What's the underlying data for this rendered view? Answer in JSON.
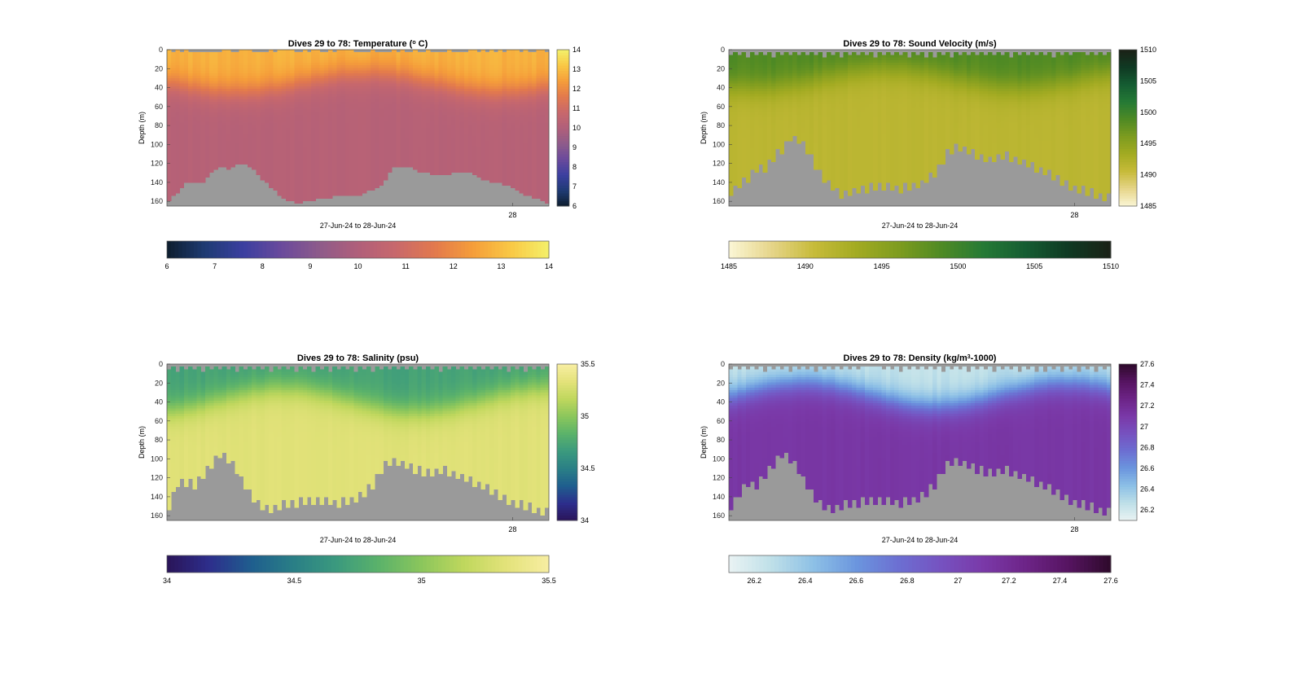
{
  "chart_data": [
    {
      "type": "heatmap",
      "title": "Dives 29 to 78: Temperature (°C)",
      "title_parts": [
        "Dives 29 to 78: Temperature (",
        "o",
        " C)"
      ],
      "xlabel": "27-Jun-24 to 28-Jun-24",
      "ylabel": "Depth (m)",
      "ylim": [
        0,
        165
      ],
      "y_ticks": [
        "0",
        "20",
        "40",
        "60",
        "80",
        "100",
        "120",
        "140",
        "160"
      ],
      "x_ticks": [
        "28"
      ],
      "clim": [
        6,
        14
      ],
      "colorbar_ticks": [
        "6",
        "7",
        "8",
        "9",
        "10",
        "11",
        "12",
        "13",
        "14"
      ],
      "horizontal_colorbar_ticks": [
        "6",
        "7",
        "8",
        "9",
        "10",
        "11",
        "12",
        "13",
        "14"
      ],
      "colormap": [
        "#0d1e2e",
        "#1f3b73",
        "#3b3fa0",
        "#6a4a9c",
        "#8e5b8a",
        "#b05f7a",
        "#c8686c",
        "#e2794d",
        "#f59d3a",
        "#f9c844",
        "#f4f06a"
      ],
      "profile": {
        "surface": 12.8,
        "deep": 10.2,
        "mixed_layer_m": [
          25,
          45
        ]
      },
      "seafloor_m": [
        160,
        150,
        140,
        140,
        141,
        130,
        124,
        126,
        122,
        122,
        128,
        138,
        146,
        154,
        160,
        162,
        160,
        158,
        157,
        155,
        155,
        155,
        154,
        150,
        148,
        140,
        125,
        122,
        124,
        128,
        130,
        132,
        132,
        130,
        128,
        130,
        134,
        138,
        140,
        142,
        146,
        150,
        155,
        158,
        162
      ],
      "gaps": "none"
    },
    {
      "type": "heatmap",
      "title": "Dives 29 to 78: Sound Velocity (m/s)",
      "xlabel": "27-Jun-24 to 28-Jun-24",
      "ylabel": "Depth (m)",
      "ylim": [
        0,
        165
      ],
      "y_ticks": [
        "0",
        "20",
        "40",
        "60",
        "80",
        "100",
        "120",
        "140",
        "160"
      ],
      "x_ticks": [
        "28"
      ],
      "clim": [
        1485,
        1510
      ],
      "colorbar_ticks": [
        "1485",
        "1490",
        "1495",
        "1500",
        "1505",
        "1510"
      ],
      "horizontal_colorbar_ticks": [
        "1485",
        "1490",
        "1495",
        "1500",
        "1505",
        "1510"
      ],
      "colormap": [
        "#fbf7d6",
        "#e6d58a",
        "#c7bb3a",
        "#a3ab22",
        "#7e9c1f",
        "#4f8a24",
        "#257a35",
        "#155c32",
        "#0f3a23",
        "#1b2116"
      ],
      "profile": {
        "surface": 1499,
        "deep": 1491.5,
        "mixed_layer_m": [
          20,
          40
        ]
      },
      "seafloor_m": [
        155,
        145,
        140,
        130,
        128,
        118,
        108,
        96,
        100,
        110,
        130,
        142,
        150,
        158,
        154,
        150,
        150,
        148,
        148,
        150,
        150,
        148,
        146,
        140,
        132,
        115,
        106,
        108,
        112,
        118,
        120,
        118,
        115,
        120,
        122,
        126,
        130,
        135,
        140,
        146,
        150,
        152,
        155,
        158,
        160
      ],
      "gaps": "stepped"
    },
    {
      "type": "heatmap",
      "title": "Dives 29 to 78: Salinity (psu)",
      "xlabel": "27-Jun-24 to 28-Jun-24",
      "ylabel": "Depth (m)",
      "ylim": [
        0,
        165
      ],
      "y_ticks": [
        "0",
        "20",
        "40",
        "60",
        "80",
        "100",
        "120",
        "140",
        "160"
      ],
      "x_ticks": [
        "28"
      ],
      "clim": [
        34,
        35.5
      ],
      "colorbar_ticks": [
        "34",
        "34.5",
        "35",
        "35.5"
      ],
      "horizontal_colorbar_ticks": [
        "34",
        "34.5",
        "35",
        "35.5"
      ],
      "colormap": [
        "#2a1458",
        "#2d2e8c",
        "#1f5e8e",
        "#2a7f86",
        "#3b9a7e",
        "#5bb26a",
        "#8bc65c",
        "#bfd75d",
        "#e3e27a",
        "#f7eea2"
      ],
      "profile": {
        "surface": 34.72,
        "deep": 35.32,
        "mixed_layer_m": [
          25,
          50
        ]
      },
      "seafloor_m": [
        155,
        130,
        128,
        132,
        120,
        110,
        98,
        105,
        118,
        135,
        148,
        155,
        158,
        152,
        150,
        150,
        148,
        147,
        148,
        150,
        150,
        148,
        144,
        138,
        128,
        110,
        106,
        108,
        112,
        116,
        118,
        118,
        116,
        120,
        122,
        126,
        130,
        135,
        140,
        146,
        150,
        152,
        155,
        158,
        160
      ],
      "gaps": "stepped"
    },
    {
      "type": "heatmap",
      "title": "Dives 29 to 78: Density (kg/m³-1000)",
      "title_parts": [
        "Dives 29 to 78: Density (kg/m",
        "3",
        "-1000)"
      ],
      "xlabel": "27-Jun-24 to 28-Jun-24",
      "ylabel": "Depth (m)",
      "ylim": [
        0,
        165
      ],
      "y_ticks": [
        "0",
        "20",
        "40",
        "60",
        "80",
        "100",
        "120",
        "140",
        "160"
      ],
      "x_ticks": [
        "28"
      ],
      "clim": [
        26.1,
        27.6
      ],
      "colorbar_ticks": [
        "26.2",
        "26.4",
        "26.6",
        "26.8",
        "27",
        "27.2",
        "27.4",
        "27.6"
      ],
      "horizontal_colorbar_ticks": [
        "26.2",
        "26.4",
        "26.6",
        "26.8",
        "27",
        "27.2",
        "27.4",
        "27.6"
      ],
      "colormap": [
        "#eaf3f3",
        "#bfe0e8",
        "#8dc0e6",
        "#6b96de",
        "#6c6fd2",
        "#7652c0",
        "#7a39a8",
        "#6d2487",
        "#561461",
        "#2e0a2b"
      ],
      "profile": {
        "surface": 26.25,
        "deep": 27.12,
        "mixed_layer_m": [
          20,
          45
        ]
      },
      "seafloor_m": [
        155,
        140,
        130,
        132,
        120,
        110,
        98,
        105,
        118,
        135,
        148,
        155,
        158,
        152,
        150,
        150,
        148,
        147,
        148,
        150,
        150,
        148,
        144,
        138,
        128,
        110,
        106,
        108,
        112,
        116,
        118,
        118,
        116,
        120,
        122,
        126,
        130,
        135,
        140,
        146,
        150,
        152,
        155,
        158,
        160
      ],
      "gaps": "stepped"
    }
  ]
}
